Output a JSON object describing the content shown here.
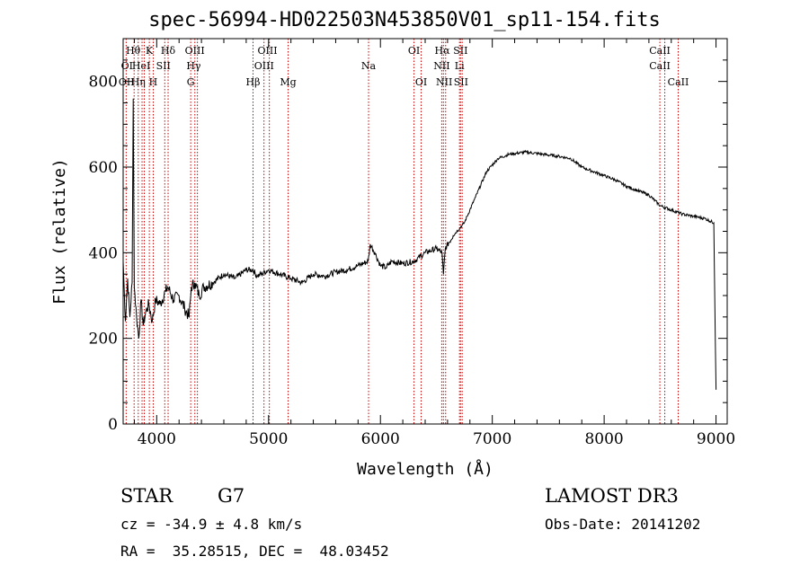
{
  "chart_data": {
    "type": "line",
    "title": "spec-56994-HD022503N453850V01_sp11-154.fits",
    "xlabel": "Wavelength (Å)",
    "ylabel": "Flux (relative)",
    "xlim": [
      3700,
      9100
    ],
    "ylim": [
      0,
      900
    ],
    "xticks": [
      4000,
      5000,
      6000,
      7000,
      8000,
      9000
    ],
    "yticks": [
      0,
      200,
      400,
      600,
      800
    ],
    "grid": false,
    "series": [
      {
        "x": [
          3700,
          3720,
          3740,
          3760,
          3780,
          3790,
          3800,
          3820,
          3840,
          3860,
          3880,
          3900,
          3930,
          3960,
          3990,
          4030,
          4080,
          4100,
          4150,
          4200,
          4250,
          4290,
          4310,
          4340,
          4380,
          4420,
          4500,
          4600,
          4700,
          4800,
          4860,
          4900,
          5000,
          5100,
          5200,
          5300,
          5400,
          5500,
          5600,
          5700,
          5800,
          5890,
          5910,
          5950,
          6000,
          6050,
          6100,
          6200,
          6300,
          6400,
          6500,
          6550,
          6563,
          6580,
          6650,
          6750,
          6850,
          6950,
          7050,
          7150,
          7300,
          7450,
          7600,
          7700,
          7800,
          7900,
          8000,
          8100,
          8200,
          8300,
          8400,
          8500,
          8600,
          8700,
          8800,
          8900,
          8980,
          9000
        ],
        "values": [
          380,
          240,
          340,
          250,
          330,
          760,
          320,
          250,
          200,
          290,
          230,
          260,
          280,
          240,
          290,
          280,
          310,
          320,
          290,
          300,
          270,
          250,
          320,
          330,
          300,
          320,
          330,
          350,
          340,
          360,
          360,
          345,
          360,
          350,
          340,
          330,
          350,
          345,
          355,
          360,
          370,
          380,
          420,
          400,
          370,
          365,
          380,
          375,
          380,
          400,
          410,
          400,
          350,
          410,
          440,
          470,
          530,
          590,
          620,
          630,
          635,
          630,
          625,
          620,
          600,
          590,
          580,
          570,
          555,
          545,
          535,
          510,
          500,
          490,
          485,
          480,
          470,
          80
        ]
      }
    ],
    "lines": [
      {
        "x": 3727,
        "labels": [
          "OII"
        ]
      },
      {
        "x": 3798,
        "labels": [
          "Hθ"
        ]
      },
      {
        "x": 3835,
        "labels": [
          "Hη"
        ]
      },
      {
        "x": 3869,
        "labels": [
          ""
        ]
      },
      {
        "x": 3889,
        "labels": [
          "HeI"
        ]
      },
      {
        "x": 3934,
        "labels": [
          "K"
        ]
      },
      {
        "x": 3969,
        "labels": [
          "H"
        ]
      },
      {
        "x": 4072,
        "labels": [
          "SII"
        ]
      },
      {
        "x": 4102,
        "labels": [
          "Hδ"
        ]
      },
      {
        "x": 4304,
        "labels": [
          "G"
        ]
      },
      {
        "x": 4341,
        "labels": [
          "Hγ"
        ]
      },
      {
        "x": 4364,
        "labels": [
          "OIII"
        ]
      },
      {
        "x": 4861,
        "labels": [
          "Hβ"
        ]
      },
      {
        "x": 4959,
        "labels": [
          "OIII"
        ]
      },
      {
        "x": 5007,
        "labels": [
          "OIII"
        ]
      },
      {
        "x": 5175,
        "labels": [
          "Mg"
        ]
      },
      {
        "x": 5894,
        "labels": [
          "Na"
        ]
      },
      {
        "x": 6300,
        "labels": [
          "OI"
        ]
      },
      {
        "x": 6364,
        "labels": [
          "OI"
        ]
      },
      {
        "x": 6548,
        "labels": [
          "NII"
        ]
      },
      {
        "x": 6563,
        "labels": [
          "Hα"
        ]
      },
      {
        "x": 6583,
        "labels": [
          "NII"
        ]
      },
      {
        "x": 6707,
        "labels": [
          "Li"
        ]
      },
      {
        "x": 6716,
        "labels": [
          "SII"
        ]
      },
      {
        "x": 6731,
        "labels": [
          "SII"
        ]
      },
      {
        "x": 8498,
        "labels": [
          "CaII"
        ]
      },
      {
        "x": 8542,
        "labels": [
          "CaII"
        ]
      },
      {
        "x": 8662,
        "labels": [
          "CaII"
        ]
      }
    ],
    "line_labels": [
      {
        "text": "Hθ",
        "x": 3790,
        "row": 0
      },
      {
        "text": "K",
        "x": 3934,
        "row": 0
      },
      {
        "text": "Hδ",
        "x": 4102,
        "row": 0
      },
      {
        "text": "OIII",
        "x": 4340,
        "row": 0
      },
      {
        "text": "OIII",
        "x": 4990,
        "row": 0
      },
      {
        "text": "OI",
        "x": 6300,
        "row": 0
      },
      {
        "text": "Hα",
        "x": 6553,
        "row": 0
      },
      {
        "text": "SII",
        "x": 6716,
        "row": 0
      },
      {
        "text": "CaII",
        "x": 8498,
        "row": 0
      },
      {
        "text": "OI",
        "x": 3735,
        "row": 1
      },
      {
        "text": "HeI",
        "x": 3862,
        "row": 1
      },
      {
        "text": "SII",
        "x": 4060,
        "row": 1
      },
      {
        "text": "Hγ",
        "x": 4330,
        "row": 1
      },
      {
        "text": "OIII",
        "x": 4960,
        "row": 1
      },
      {
        "text": "Na",
        "x": 5894,
        "row": 1
      },
      {
        "text": "NII",
        "x": 6548,
        "row": 1
      },
      {
        "text": "Li",
        "x": 6707,
        "row": 1
      },
      {
        "text": "CaII",
        "x": 8498,
        "row": 1
      },
      {
        "text": "OII",
        "x": 3730,
        "row": 2
      },
      {
        "text": "Hη",
        "x": 3835,
        "row": 2
      },
      {
        "text": "H",
        "x": 3969,
        "row": 2
      },
      {
        "text": "G",
        "x": 4304,
        "row": 2
      },
      {
        "text": "Hβ",
        "x": 4861,
        "row": 2
      },
      {
        "text": "Mg",
        "x": 5175,
        "row": 2
      },
      {
        "text": "OI",
        "x": 6364,
        "row": 2
      },
      {
        "text": "NII",
        "x": 6570,
        "row": 2
      },
      {
        "text": "SII",
        "x": 6720,
        "row": 2
      },
      {
        "text": "CaII",
        "x": 8662,
        "row": 2
      }
    ],
    "colors": {
      "spectrum": "#000000",
      "lines": "#cc0000",
      "axes": "#000000"
    }
  },
  "info": {
    "object_class": "STAR",
    "subclass": "G7",
    "survey": "LAMOST DR3",
    "redshift": "cz = -34.9 ± 4.8 km/s",
    "obs_date": "Obs-Date: 20141202",
    "coords": "RA =  35.28515, DEC =  48.03452"
  }
}
